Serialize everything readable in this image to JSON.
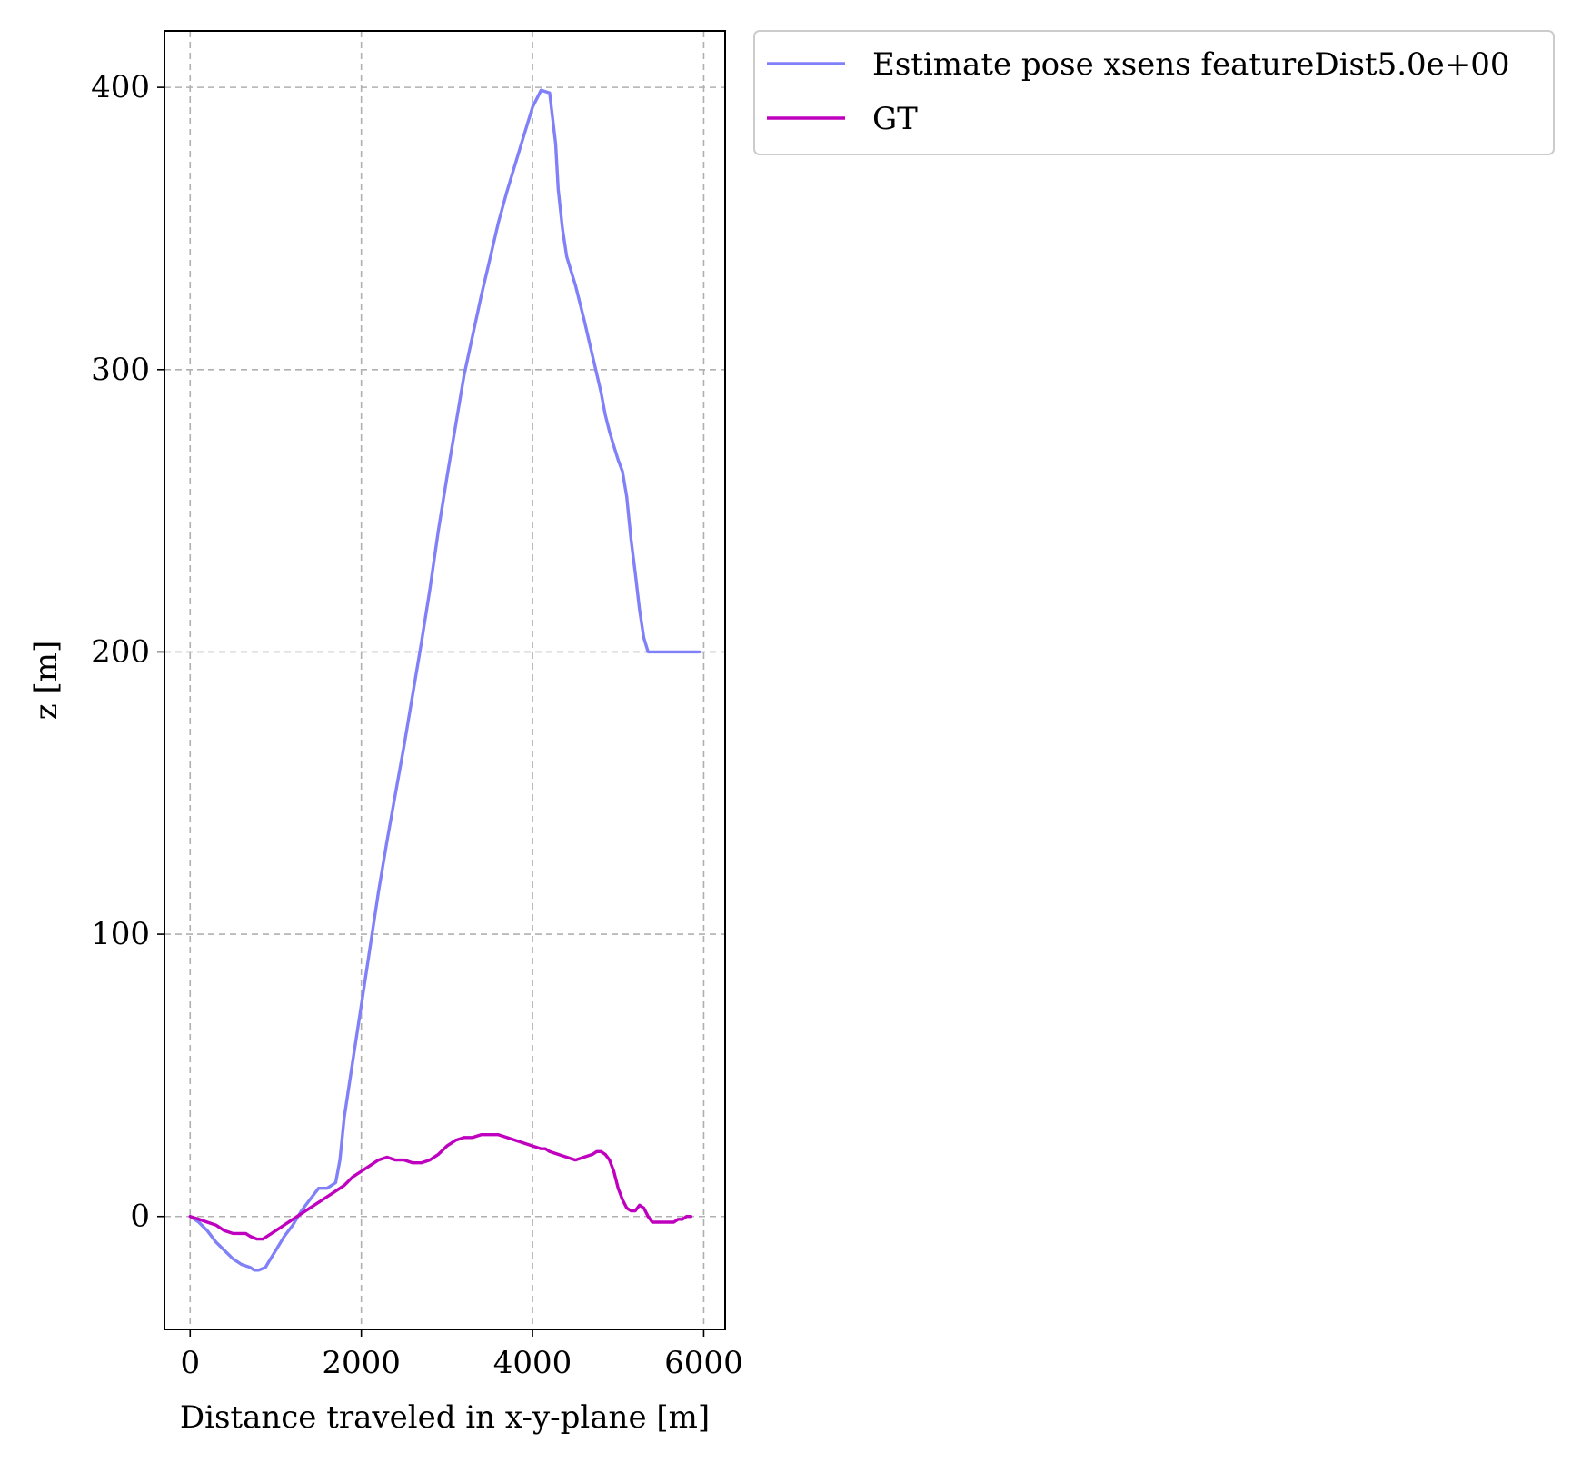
{
  "chart_data": {
    "type": "line",
    "title": "",
    "xlabel": "Distance traveled in x-y-plane [m]",
    "ylabel": "z [m]",
    "xlim": [
      -300,
      6250
    ],
    "ylim": [
      -40,
      420
    ],
    "xticks": [
      0,
      2000,
      4000,
      6000
    ],
    "xtick_labels": [
      "0",
      "2000",
      "4000",
      "6000"
    ],
    "yticks": [
      0,
      100,
      200,
      300,
      400
    ],
    "ytick_labels": [
      "0",
      "100",
      "200",
      "300",
      "400"
    ],
    "grid": true,
    "legend_position": "outside upper right",
    "series": [
      {
        "name": "Estimate pose xsens featureDist5.0e+00",
        "color": "#8080f8",
        "x": [
          0,
          100,
          200,
          300,
          400,
          500,
          600,
          700,
          750,
          800,
          880,
          920,
          1000,
          1100,
          1200,
          1300,
          1400,
          1500,
          1600,
          1700,
          1750,
          1800,
          1900,
          2000,
          2100,
          2200,
          2300,
          2400,
          2500,
          2600,
          2700,
          2800,
          2900,
          3000,
          3100,
          3200,
          3300,
          3400,
          3500,
          3600,
          3700,
          3800,
          3900,
          4000,
          4100,
          4200,
          4270,
          4300,
          4350,
          4400,
          4500,
          4600,
          4700,
          4800,
          4850,
          4900,
          4950,
          5000,
          5050,
          5100,
          5150,
          5200,
          5250,
          5300,
          5350,
          5400,
          5450,
          5500,
          5550,
          5600,
          5650,
          5700,
          5750,
          5800,
          5850,
          5870,
          5900,
          5950
        ],
        "y": [
          0,
          -2,
          -5,
          -9,
          -12,
          -15,
          -17,
          -18,
          -19,
          -19,
          -18,
          -16,
          -12,
          -7,
          -3,
          2,
          6,
          10,
          10,
          12,
          20,
          35,
          55,
          75,
          95,
          115,
          133,
          150,
          167,
          185,
          203,
          222,
          243,
          262,
          280,
          298,
          312,
          326,
          339,
          352,
          363,
          373,
          383,
          393,
          399,
          398,
          380,
          364,
          350,
          340,
          330,
          318,
          305,
          292,
          284,
          278,
          273,
          268,
          264,
          255,
          240,
          228,
          215,
          205,
          200,
          200,
          200,
          200,
          200,
          200,
          200,
          200,
          200,
          200,
          200,
          200,
          200,
          200
        ],
        "y_note_removed": ""
      },
      {
        "name": "GT",
        "color": "#bf00bf",
        "x": [
          0,
          100,
          200,
          300,
          400,
          500,
          600,
          650,
          700,
          780,
          850,
          900,
          1000,
          1100,
          1200,
          1300,
          1400,
          1500,
          1600,
          1700,
          1800,
          1900,
          2000,
          2100,
          2200,
          2300,
          2400,
          2500,
          2600,
          2700,
          2800,
          2900,
          3000,
          3100,
          3200,
          3300,
          3400,
          3500,
          3600,
          3700,
          3800,
          3900,
          4000,
          4100,
          4150,
          4200,
          4300,
          4400,
          4500,
          4600,
          4700,
          4750,
          4800,
          4850,
          4900,
          4950,
          5000,
          5050,
          5100,
          5150,
          5200,
          5250,
          5300,
          5350,
          5400,
          5450,
          5500,
          5550,
          5600,
          5650,
          5700,
          5750,
          5800,
          5850
        ],
        "y": [
          0,
          -1,
          -2,
          -3,
          -5,
          -6,
          -6,
          -6,
          -7,
          -8,
          -8,
          -7,
          -5,
          -3,
          -1,
          1,
          3,
          5,
          7,
          9,
          11,
          14,
          16,
          18,
          20,
          21,
          20,
          20,
          19,
          19,
          20,
          22,
          25,
          27,
          28,
          28,
          29,
          29,
          29,
          28,
          27,
          26,
          25,
          24,
          24,
          23,
          22,
          21,
          20,
          21,
          22,
          23,
          23,
          22,
          20,
          16,
          10,
          6,
          3,
          2,
          2,
          4,
          3,
          0,
          -2,
          -2,
          -2,
          -2,
          -2,
          -2,
          -1,
          -1,
          0,
          0
        ]
      }
    ]
  }
}
